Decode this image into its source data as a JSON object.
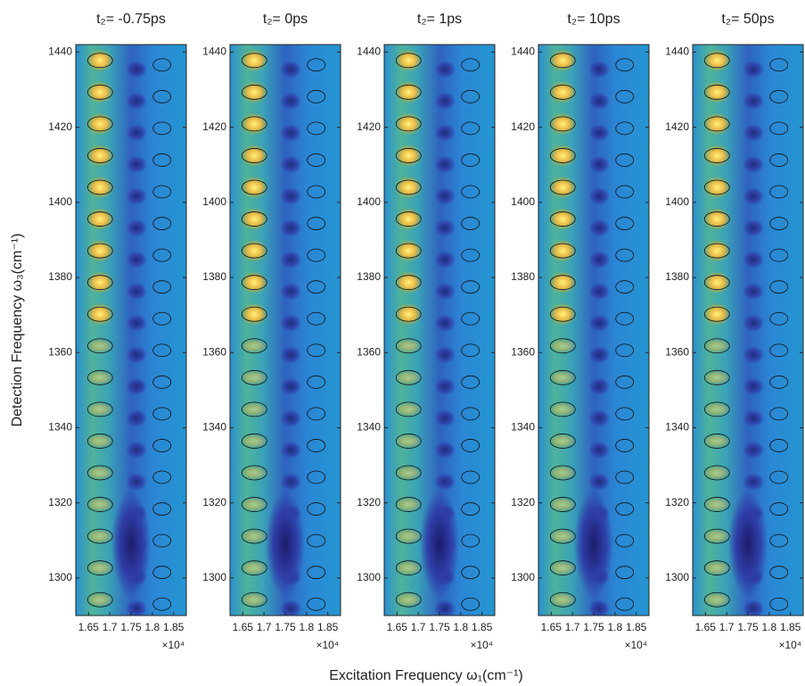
{
  "chart_data": [
    {
      "type": "contour",
      "title": "t₂= -0.75ps",
      "xlim": [
        1.62,
        1.88
      ],
      "ylim": [
        1290,
        1442
      ],
      "xticks": [
        1.65,
        1.7,
        1.75,
        1.8,
        1.85
      ],
      "yticks": [
        1300,
        1320,
        1340,
        1360,
        1380,
        1400,
        1420,
        1440
      ],
      "x_multiplier": "×10⁴"
    },
    {
      "type": "contour",
      "title": "t₂= 0ps",
      "xlim": [
        1.62,
        1.88
      ],
      "ylim": [
        1290,
        1442
      ],
      "xticks": [
        1.65,
        1.7,
        1.75,
        1.8,
        1.85
      ],
      "yticks": [
        1300,
        1320,
        1340,
        1360,
        1380,
        1400,
        1420,
        1440
      ],
      "x_multiplier": "×10⁴"
    },
    {
      "type": "contour",
      "title": "t₂= 1ps",
      "xlim": [
        1.62,
        1.88
      ],
      "ylim": [
        1290,
        1442
      ],
      "xticks": [
        1.65,
        1.7,
        1.75,
        1.8,
        1.85
      ],
      "yticks": [
        1300,
        1320,
        1340,
        1360,
        1380,
        1400,
        1420,
        1440
      ],
      "x_multiplier": "×10⁴"
    },
    {
      "type": "contour",
      "title": "t₂= 10ps",
      "xlim": [
        1.62,
        1.88
      ],
      "ylim": [
        1290,
        1442
      ],
      "xticks": [
        1.65,
        1.7,
        1.75,
        1.8,
        1.85
      ],
      "yticks": [
        1300,
        1320,
        1340,
        1360,
        1380,
        1400,
        1420,
        1440
      ],
      "x_multiplier": "×10⁴"
    },
    {
      "type": "contour",
      "title": "t₂= 50ps",
      "xlim": [
        1.62,
        1.88
      ],
      "ylim": [
        1290,
        1442
      ],
      "xticks": [
        1.65,
        1.7,
        1.75,
        1.8,
        1.85
      ],
      "yticks": [
        1300,
        1320,
        1340,
        1360,
        1380,
        1400,
        1420,
        1440
      ],
      "x_multiplier": "×10⁴"
    }
  ],
  "xlabel": "Excitation Frequency ω₁(cm⁻¹)",
  "ylabel": "Detection Frequency ω₃(cm⁻¹)"
}
